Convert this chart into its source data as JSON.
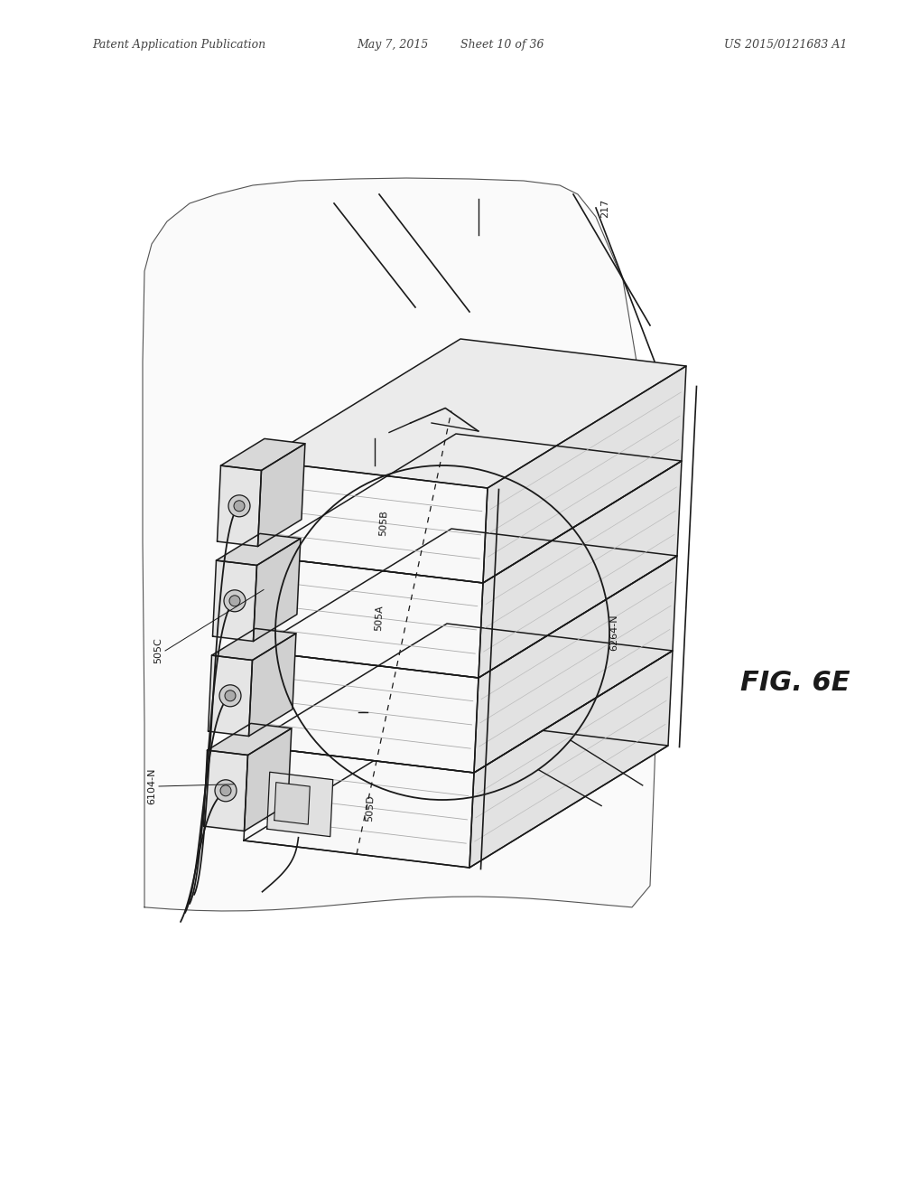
{
  "header_left": "Patent Application Publication",
  "header_center": "May 7, 2015   Sheet 10 of 36",
  "header_right": "US 2015/0121683 A1",
  "figure_label": "FIG. 6E",
  "background_color": "#ffffff",
  "drawing_color": "#1a1a1a",
  "paper_color": "#f5f5f5",
  "label_505B": "505B",
  "label_505A": "505A",
  "label_505C": "505C",
  "label_505D": "505D",
  "label_6104N": "6104-N",
  "label_6264N": "6264-N",
  "label_217": "217"
}
